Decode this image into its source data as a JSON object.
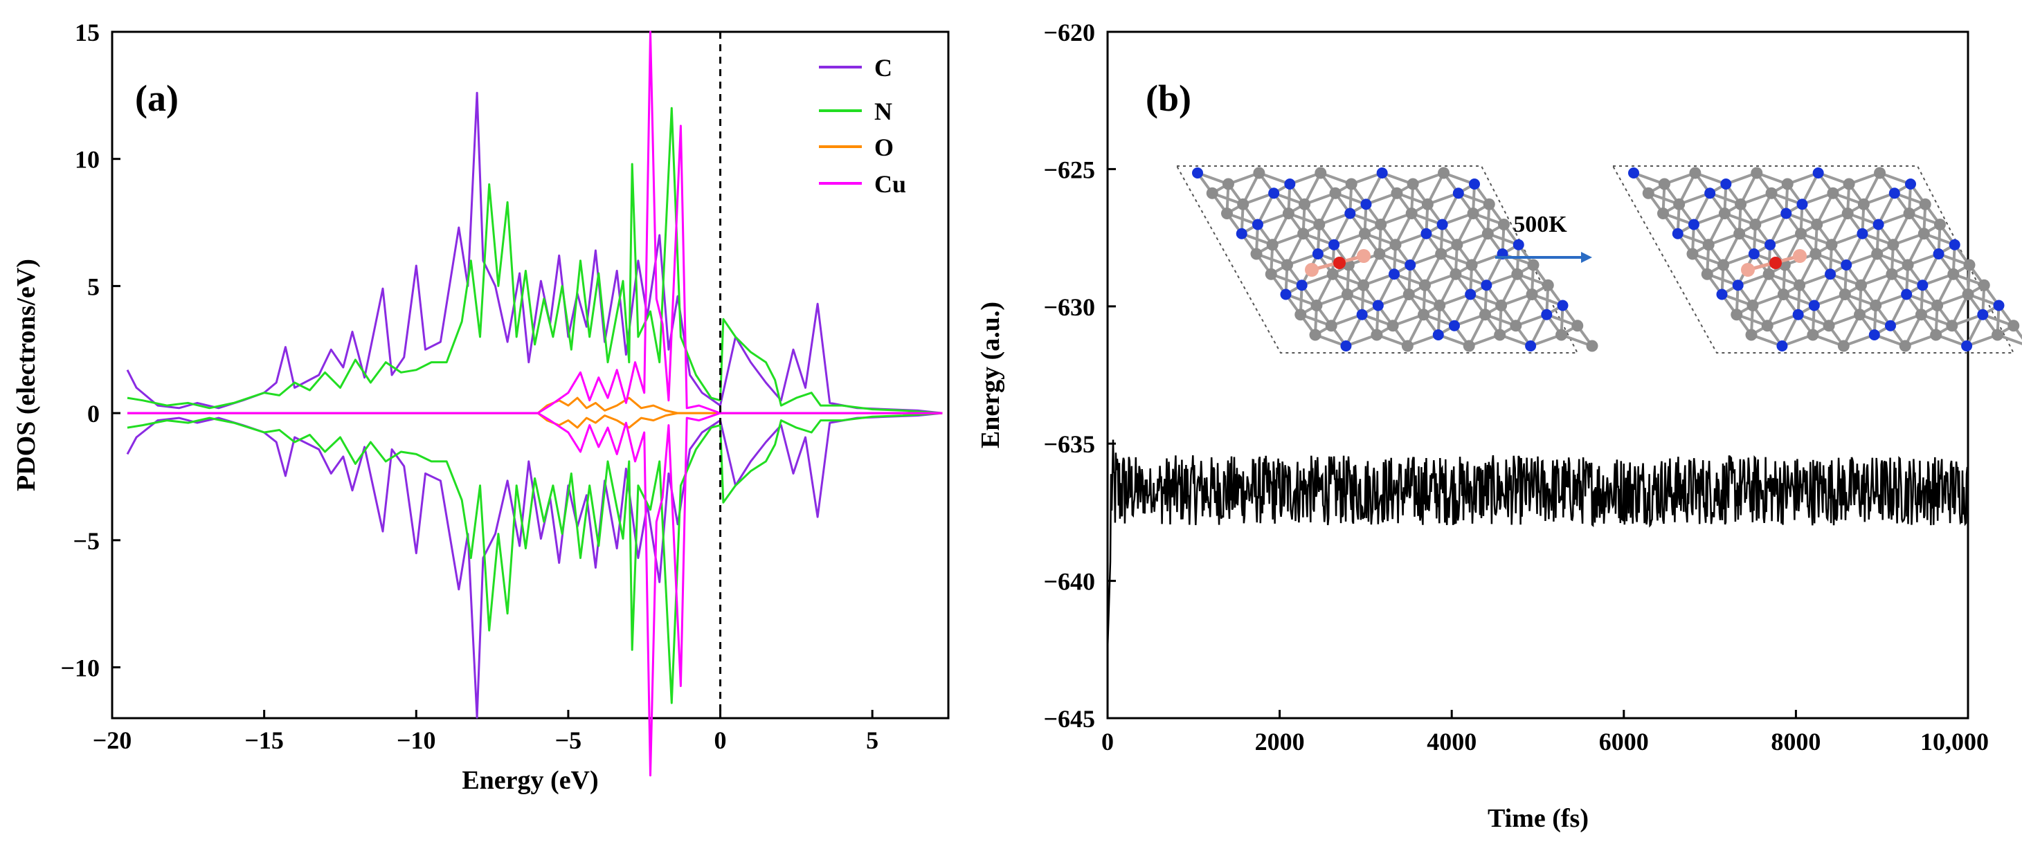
{
  "chart_data": [
    {
      "panel": "(a)",
      "type": "line",
      "xlabel": "Energy (eV)",
      "ylabel": "PDOS (electrons/eV)",
      "xlim": [
        -20,
        7.5
      ],
      "ylim": [
        -12,
        15
      ],
      "xticks": [
        -20,
        -15,
        -10,
        -5,
        0,
        5
      ],
      "yticks": [
        -10,
        -5,
        0,
        5,
        10,
        15
      ],
      "fermi_level": 0,
      "legend_position": "top-right",
      "series": [
        {
          "name": "C",
          "color": "#8a2be2",
          "sign": 1,
          "points": [
            [
              -19.5,
              1.7
            ],
            [
              -19.2,
              1.0
            ],
            [
              -18.5,
              0.3
            ],
            [
              -17.8,
              0.2
            ],
            [
              -17.2,
              0.4
            ],
            [
              -16.5,
              0.2
            ],
            [
              -15.7,
              0.5
            ],
            [
              -15,
              0.8
            ],
            [
              -14.6,
              1.2
            ],
            [
              -14.3,
              2.6
            ],
            [
              -14,
              1.0
            ],
            [
              -13.2,
              1.5
            ],
            [
              -12.8,
              2.5
            ],
            [
              -12.4,
              1.8
            ],
            [
              -12.1,
              3.2
            ],
            [
              -11.7,
              1.4
            ],
            [
              -11.1,
              4.9
            ],
            [
              -10.8,
              1.5
            ],
            [
              -10.4,
              2.2
            ],
            [
              -10,
              5.8
            ],
            [
              -9.7,
              2.5
            ],
            [
              -9.2,
              2.8
            ],
            [
              -8.6,
              7.3
            ],
            [
              -8.3,
              5.0
            ],
            [
              -8.0,
              12.6
            ],
            [
              -7.8,
              6.0
            ],
            [
              -7.4,
              5.0
            ],
            [
              -7.0,
              2.8
            ],
            [
              -6.6,
              5.5
            ],
            [
              -6.3,
              2.0
            ],
            [
              -5.9,
              5.2
            ],
            [
              -5.6,
              3.5
            ],
            [
              -5.3,
              6.2
            ],
            [
              -5.0,
              3.0
            ],
            [
              -4.7,
              4.7
            ],
            [
              -4.4,
              3.4
            ],
            [
              -4.1,
              6.4
            ],
            [
              -3.8,
              2.8
            ],
            [
              -3.4,
              5.6
            ],
            [
              -3.1,
              2.3
            ],
            [
              -2.7,
              6.0
            ],
            [
              -2.4,
              3.8
            ],
            [
              -2.0,
              7.0
            ],
            [
              -1.7,
              2.5
            ],
            [
              -1.4,
              4.6
            ],
            [
              -1.0,
              1.5
            ],
            [
              -0.6,
              0.8
            ],
            [
              0,
              0.3
            ],
            [
              0.5,
              3.0
            ],
            [
              1.0,
              2.0
            ],
            [
              1.5,
              1.2
            ],
            [
              2.0,
              0.5
            ],
            [
              2.4,
              2.5
            ],
            [
              2.8,
              1.0
            ],
            [
              3.2,
              4.3
            ],
            [
              3.6,
              0.4
            ],
            [
              4.5,
              0.2
            ],
            [
              5.5,
              0.15
            ],
            [
              6.5,
              0.1
            ],
            [
              7.3,
              0
            ]
          ]
        },
        {
          "name": "N",
          "color": "#22dd22",
          "sign": 1,
          "points": [
            [
              -19.5,
              0.6
            ],
            [
              -19,
              0.5
            ],
            [
              -18.2,
              0.3
            ],
            [
              -17.5,
              0.4
            ],
            [
              -16.8,
              0.2
            ],
            [
              -16,
              0.4
            ],
            [
              -15,
              0.8
            ],
            [
              -14.5,
              0.7
            ],
            [
              -14,
              1.2
            ],
            [
              -13.5,
              0.9
            ],
            [
              -13,
              1.6
            ],
            [
              -12.5,
              1.0
            ],
            [
              -12,
              2.1
            ],
            [
              -11.5,
              1.2
            ],
            [
              -11,
              2.0
            ],
            [
              -10.5,
              1.6
            ],
            [
              -10,
              1.7
            ],
            [
              -9.5,
              2.0
            ],
            [
              -9,
              2.0
            ],
            [
              -8.5,
              3.6
            ],
            [
              -8.2,
              6.0
            ],
            [
              -7.9,
              3.0
            ],
            [
              -7.6,
              9.0
            ],
            [
              -7.3,
              5.0
            ],
            [
              -7.0,
              8.3
            ],
            [
              -6.7,
              3.0
            ],
            [
              -6.4,
              5.6
            ],
            [
              -6.1,
              2.7
            ],
            [
              -5.8,
              4.5
            ],
            [
              -5.5,
              3.0
            ],
            [
              -5.2,
              5.0
            ],
            [
              -4.9,
              2.5
            ],
            [
              -4.6,
              6.0
            ],
            [
              -4.3,
              3.0
            ],
            [
              -4.0,
              5.5
            ],
            [
              -3.7,
              2.0
            ],
            [
              -3.2,
              5.2
            ],
            [
              -3.0,
              2.0
            ],
            [
              -2.9,
              9.8
            ],
            [
              -2.7,
              3.0
            ],
            [
              -2.3,
              4.0
            ],
            [
              -2.0,
              2.0
            ],
            [
              -1.6,
              12.0
            ],
            [
              -1.3,
              3.0
            ],
            [
              -0.8,
              1.5
            ],
            [
              -0.3,
              0.6
            ],
            [
              0,
              0.5
            ],
            [
              0.1,
              3.7
            ],
            [
              0.5,
              3.0
            ],
            [
              1.0,
              2.4
            ],
            [
              1.5,
              2.0
            ],
            [
              1.8,
              1.3
            ],
            [
              2.0,
              0.3
            ],
            [
              2.5,
              0.6
            ],
            [
              3.0,
              0.8
            ],
            [
              3.3,
              0.3
            ],
            [
              4.0,
              0.3
            ],
            [
              5.0,
              0.15
            ],
            [
              6.0,
              0.1
            ],
            [
              7.3,
              0
            ]
          ]
        },
        {
          "name": "O",
          "color": "#ff8c00",
          "sign": 1,
          "points": [
            [
              -19.5,
              0
            ],
            [
              -6,
              0
            ],
            [
              -5.7,
              0.3
            ],
            [
              -5.3,
              0.5
            ],
            [
              -5.0,
              0.3
            ],
            [
              -4.7,
              0.6
            ],
            [
              -4.4,
              0.2
            ],
            [
              -4.1,
              0.4
            ],
            [
              -3.8,
              0.1
            ],
            [
              -3.4,
              0.3
            ],
            [
              -3.0,
              0.6
            ],
            [
              -2.6,
              0.2
            ],
            [
              -2.2,
              0.3
            ],
            [
              -1.8,
              0.1
            ],
            [
              -1.4,
              0
            ],
            [
              7.3,
              0
            ]
          ]
        },
        {
          "name": "Cu",
          "color": "#ff00ff",
          "sign": 1,
          "points": [
            [
              -19.5,
              0
            ],
            [
              -6,
              0
            ],
            [
              -5.6,
              0.3
            ],
            [
              -5.0,
              0.8
            ],
            [
              -4.6,
              1.6
            ],
            [
              -4.3,
              0.5
            ],
            [
              -4.0,
              1.4
            ],
            [
              -3.7,
              0.6
            ],
            [
              -3.4,
              1.7
            ],
            [
              -3.1,
              0.4
            ],
            [
              -2.8,
              2.0
            ],
            [
              -2.5,
              0.8
            ],
            [
              -2.3,
              15.0
            ],
            [
              -2.1,
              4.5
            ],
            [
              -1.9,
              3.5
            ],
            [
              -1.7,
              0.5
            ],
            [
              -1.3,
              11.3
            ],
            [
              -1.1,
              0.2
            ],
            [
              -0.7,
              0.3
            ],
            [
              0,
              0
            ],
            [
              7.3,
              0
            ]
          ]
        }
      ]
    },
    {
      "panel": "(b)",
      "type": "line",
      "xlabel": "Time (fs)",
      "ylabel": "Energy (a.u.)",
      "xlim": [
        0,
        10000
      ],
      "ylim": [
        -645,
        -620
      ],
      "xticks": [
        0,
        2000,
        4000,
        6000,
        8000,
        10000
      ],
      "xticklabels": [
        "0",
        "2000",
        "4000",
        "6000",
        "8000",
        "10,000"
      ],
      "yticks": [
        -645,
        -640,
        -635,
        -630,
        -625,
        -620
      ],
      "series": [
        {
          "name": "Energy",
          "color": "#000000",
          "mean": -636.7,
          "fluctuation": 0.8,
          "initial_min": -642.5,
          "initial_max": -634.0
        }
      ],
      "inset_label": "500K"
    }
  ],
  "legend": {
    "labels": [
      "C",
      "N",
      "O",
      "Cu"
    ],
    "colors": [
      "#8a2be2",
      "#22dd22",
      "#ff8c00",
      "#ff00ff"
    ]
  }
}
